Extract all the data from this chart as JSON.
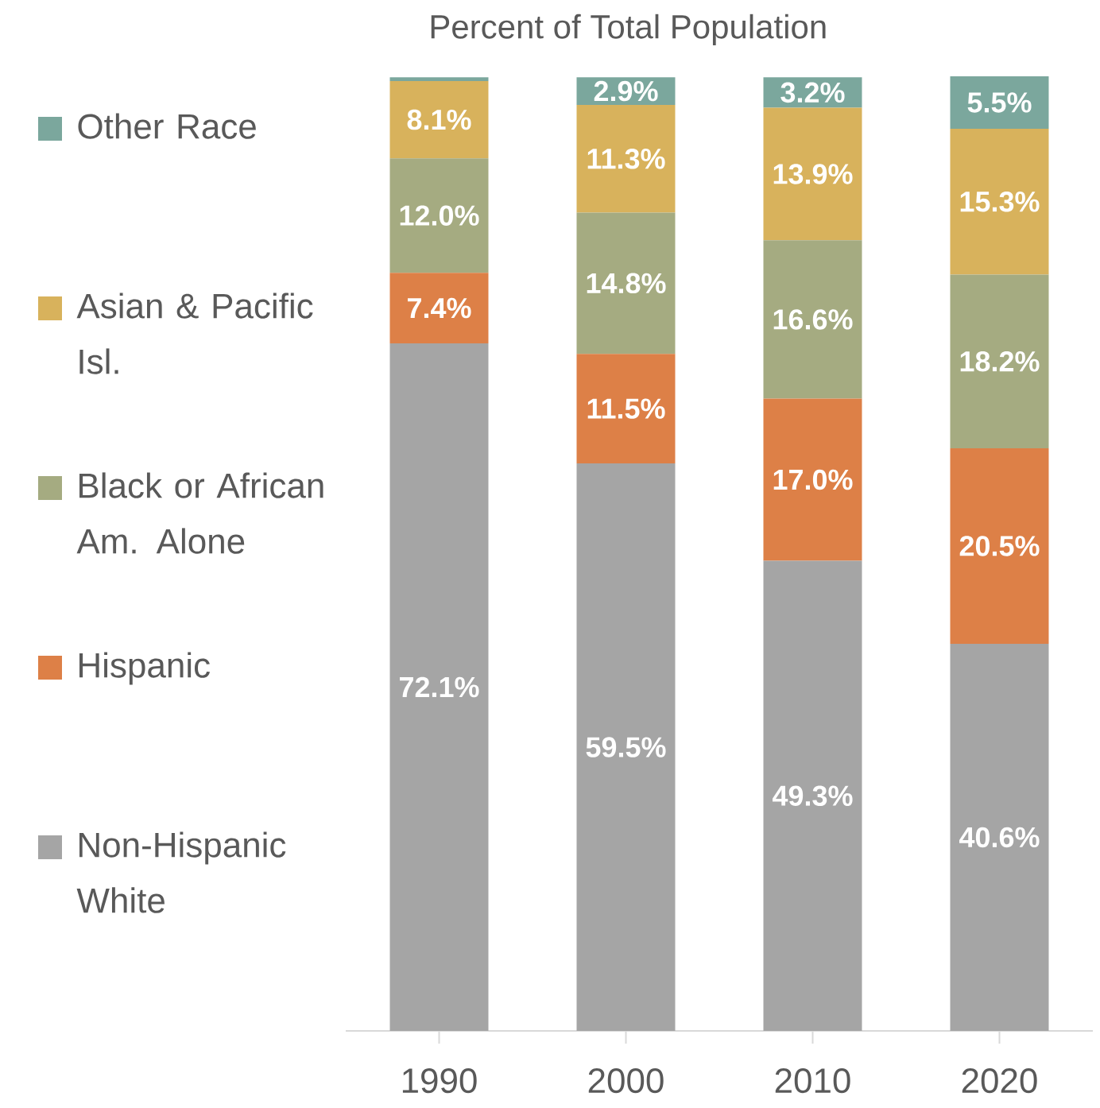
{
  "chart_data": {
    "type": "bar",
    "stacked": true,
    "title": "Percent of Total Population",
    "categories": [
      "1990",
      "2000",
      "2010",
      "2020"
    ],
    "series": [
      {
        "name": "Non-Hispanic White",
        "color": "#a5a5a5",
        "values": [
          72.1,
          59.5,
          49.3,
          40.6
        ],
        "value_labels": [
          "72.1%",
          "59.5%",
          "49.3%",
          "40.6%"
        ]
      },
      {
        "name": "Hispanic",
        "color": "#dd8047",
        "values": [
          7.4,
          11.5,
          17.0,
          20.5
        ],
        "value_labels": [
          "7.4%",
          "11.5%",
          "17.0%",
          "20.5%"
        ]
      },
      {
        "name": "Black or African Am. Alone",
        "color": "#a5ab81",
        "values": [
          12.0,
          14.8,
          16.6,
          18.2
        ],
        "value_labels": [
          "12.0%",
          "14.8%",
          "16.6%",
          "18.2%"
        ]
      },
      {
        "name": "Asian & Pacific Isl.",
        "color": "#d8b25c",
        "values": [
          8.1,
          11.3,
          13.9,
          15.3
        ],
        "value_labels": [
          "8.1%",
          "11.3%",
          "13.9%",
          "15.3%"
        ]
      },
      {
        "name": "Other Race",
        "color": "#7ba79d",
        "values": [
          0.4,
          2.9,
          3.2,
          5.5
        ],
        "value_labels": [
          null,
          "2.9%",
          "3.2%",
          "5.5%"
        ]
      }
    ],
    "legend": "left"
  }
}
